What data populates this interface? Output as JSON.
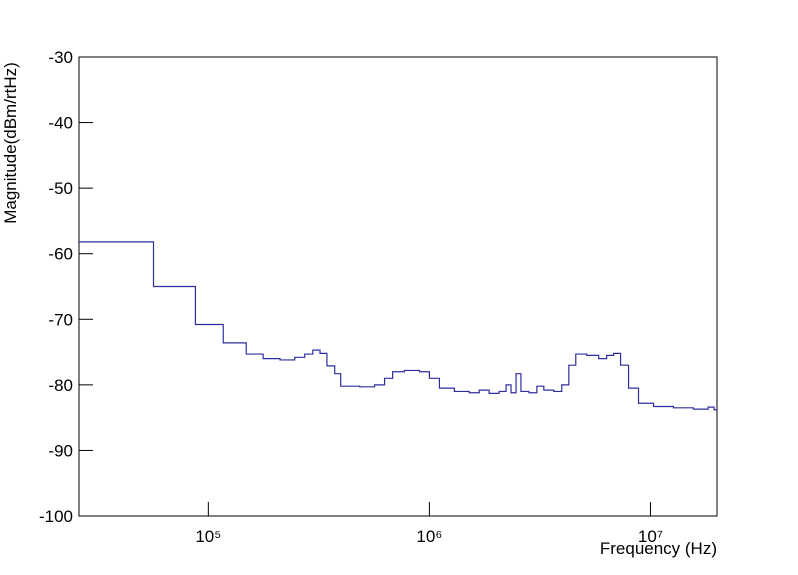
{
  "chart_data": {
    "type": "line",
    "step": "post",
    "y_label": "Magnitude(dBm/rtHz)",
    "x_label": "Frequency (Hz)",
    "x_log": true,
    "xlim": [
      26000,
      20000000
    ],
    "xticks": [
      {
        "value": 100000,
        "label": "10⁵"
      },
      {
        "value": 1000000,
        "label": "10⁶"
      },
      {
        "value": 10000000,
        "label": "10⁷"
      }
    ],
    "ylim": [
      -100,
      -30
    ],
    "yticks": [
      -100,
      -90,
      -80,
      -70,
      -60,
      -50,
      -40,
      -30
    ],
    "x": [
      26000,
      56500,
      87400,
      116800,
      148400,
      177000,
      211000,
      246000,
      273000,
      297000,
      320000,
      344000,
      373000,
      397000,
      484000,
      565000,
      627000,
      682000,
      771000,
      902000,
      1000000,
      1110000,
      1297000,
      1514000,
      1680000,
      1863000,
      2066000,
      2223000,
      2340000,
      2466000,
      2595000,
      2820000,
      3063000,
      3294000,
      3654000,
      3970000,
      4273000,
      4594000,
      5150000,
      5833000,
      6339000,
      6813000,
      7325000,
      7960000,
      8830000,
      10330000,
      12700000,
      15630000,
      18240000,
      19400000
    ],
    "series": [
      {
        "color": "#2e2e9e",
        "values": [
          -58.2,
          -65,
          -70.8,
          -73.6,
          -75.3,
          -76,
          -76.2,
          -75.8,
          -75.3,
          -74.7,
          -75.2,
          -77.1,
          -78.3,
          -80.2,
          -80.3,
          -80,
          -79,
          -78,
          -77.8,
          -78,
          -79,
          -80.5,
          -81,
          -81.2,
          -80.8,
          -81.3,
          -81,
          -80,
          -81.2,
          -78.3,
          -81,
          -81.2,
          -80.2,
          -80.8,
          -81,
          -80,
          -77,
          -75.3,
          -75.5,
          -76,
          -75.5,
          -75.2,
          -77,
          -80.5,
          -82.8,
          -83.3,
          -83.5,
          -83.7,
          -83.4,
          -83.8
        ]
      }
    ]
  }
}
